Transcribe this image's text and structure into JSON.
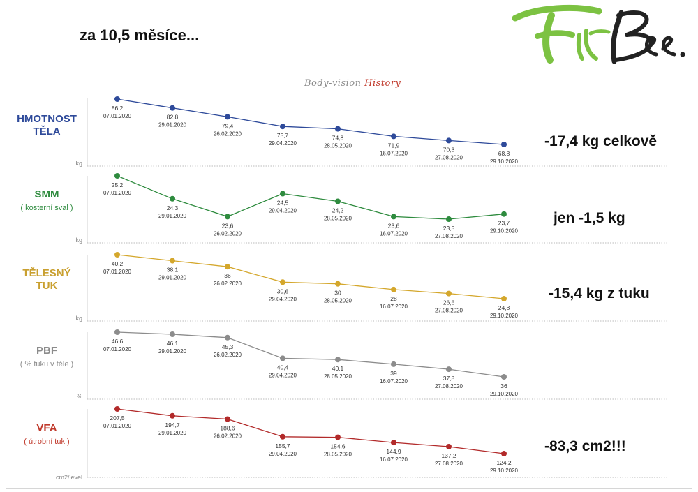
{
  "headline": "za 10,5 měsíce...",
  "logo": {
    "text": "FitBee.",
    "colors": {
      "green": "#7cc242",
      "dark": "#222222"
    }
  },
  "history_title": {
    "part1": "Body-vision",
    "part2": "History"
  },
  "summaries": [
    "-17,4 kg celkově",
    "jen -1,5 kg",
    "-15,4 kg z tuku",
    "",
    "-83,3 cm2!!!"
  ],
  "chart_data": [
    {
      "type": "line",
      "label_lines": [
        "HMOTNOST",
        "TĚLA"
      ],
      "unit": "kg",
      "color": "#2e4a9a",
      "label_color": "#2e4a9a",
      "x": [
        "07.01.2020",
        "29.01.2020",
        "26.02.2020",
        "29.04.2020",
        "28.05.2020",
        "16.07.2020",
        "27.08.2020",
        "29.10.2020"
      ],
      "values": [
        86.2,
        82.8,
        79.4,
        75.7,
        74.8,
        71.9,
        70.3,
        68.8
      ],
      "value_labels": [
        "86,2",
        "82,8",
        "79,4",
        "75,7",
        "74,8",
        "71,9",
        "70,3",
        "68,8"
      ],
      "ylim": [
        64,
        90
      ]
    },
    {
      "type": "line",
      "label_lines": [
        "SMM",
        "( kosterní sval )"
      ],
      "unit": "kg",
      "color": "#2e8b3e",
      "label_color": "#2e8b3e",
      "x": [
        "07.01.2020",
        "29.01.2020",
        "26.02.2020",
        "29.04.2020",
        "28.05.2020",
        "16.07.2020",
        "27.08.2020",
        "29.10.2020"
      ],
      "values": [
        25.2,
        24.3,
        23.6,
        24.5,
        24.2,
        23.6,
        23.5,
        23.7
      ],
      "value_labels": [
        "25,2",
        "24,3",
        "23,6",
        "24,5",
        "24,2",
        "23,6",
        "23,5",
        "23,7"
      ],
      "ylim": [
        22.6,
        25.6
      ]
    },
    {
      "type": "line",
      "label_lines": [
        "TĚLESNÝ",
        "TUK"
      ],
      "unit": "kg",
      "color": "#d4a72c",
      "label_color": "#c9a030",
      "x": [
        "07.01.2020",
        "29.01.2020",
        "26.02.2020",
        "29.04.2020",
        "28.05.2020",
        "16.07.2020",
        "27.08.2020",
        "29.10.2020"
      ],
      "values": [
        40.2,
        38.1,
        36,
        30.6,
        30,
        28,
        26.6,
        24.8
      ],
      "value_labels": [
        "40,2",
        "38,1",
        "36",
        "30,6",
        "30",
        "28",
        "26,6",
        "24,8"
      ],
      "ylim": [
        20,
        42
      ]
    },
    {
      "type": "line",
      "label_lines": [
        "PBF",
        "( % tuku v těle )"
      ],
      "unit": "%",
      "color": "#8c8c8c",
      "label_color": "#8c8c8c",
      "x": [
        "07.01.2020",
        "29.01.2020",
        "26.02.2020",
        "29.04.2020",
        "28.05.2020",
        "16.07.2020",
        "27.08.2020",
        "29.10.2020"
      ],
      "values": [
        46.6,
        46.1,
        45.3,
        40.4,
        40.1,
        39,
        37.8,
        36
      ],
      "value_labels": [
        "46,6",
        "46,1",
        "45,3",
        "40,4",
        "40,1",
        "39",
        "37,8",
        "36"
      ],
      "ylim": [
        32,
        48
      ]
    },
    {
      "type": "line",
      "label_lines": [
        "VFA",
        "( útrobní tuk )"
      ],
      "unit": "cm2/level",
      "color": "#b22a2a",
      "label_color": "#c0392b",
      "x": [
        "07.01.2020",
        "29.01.2020",
        "26.02.2020",
        "29.04.2020",
        "28.05.2020",
        "16.07.2020",
        "27.08.2020",
        "29.10.2020"
      ],
      "values": [
        207.5,
        194.7,
        188.6,
        155.7,
        154.6,
        144.9,
        137.2,
        124.2
      ],
      "value_labels": [
        "207,5",
        "194,7",
        "188,6",
        "155,7",
        "154,6",
        "144,9",
        "137,2",
        "124,2"
      ],
      "ylim": [
        110,
        215
      ]
    }
  ]
}
